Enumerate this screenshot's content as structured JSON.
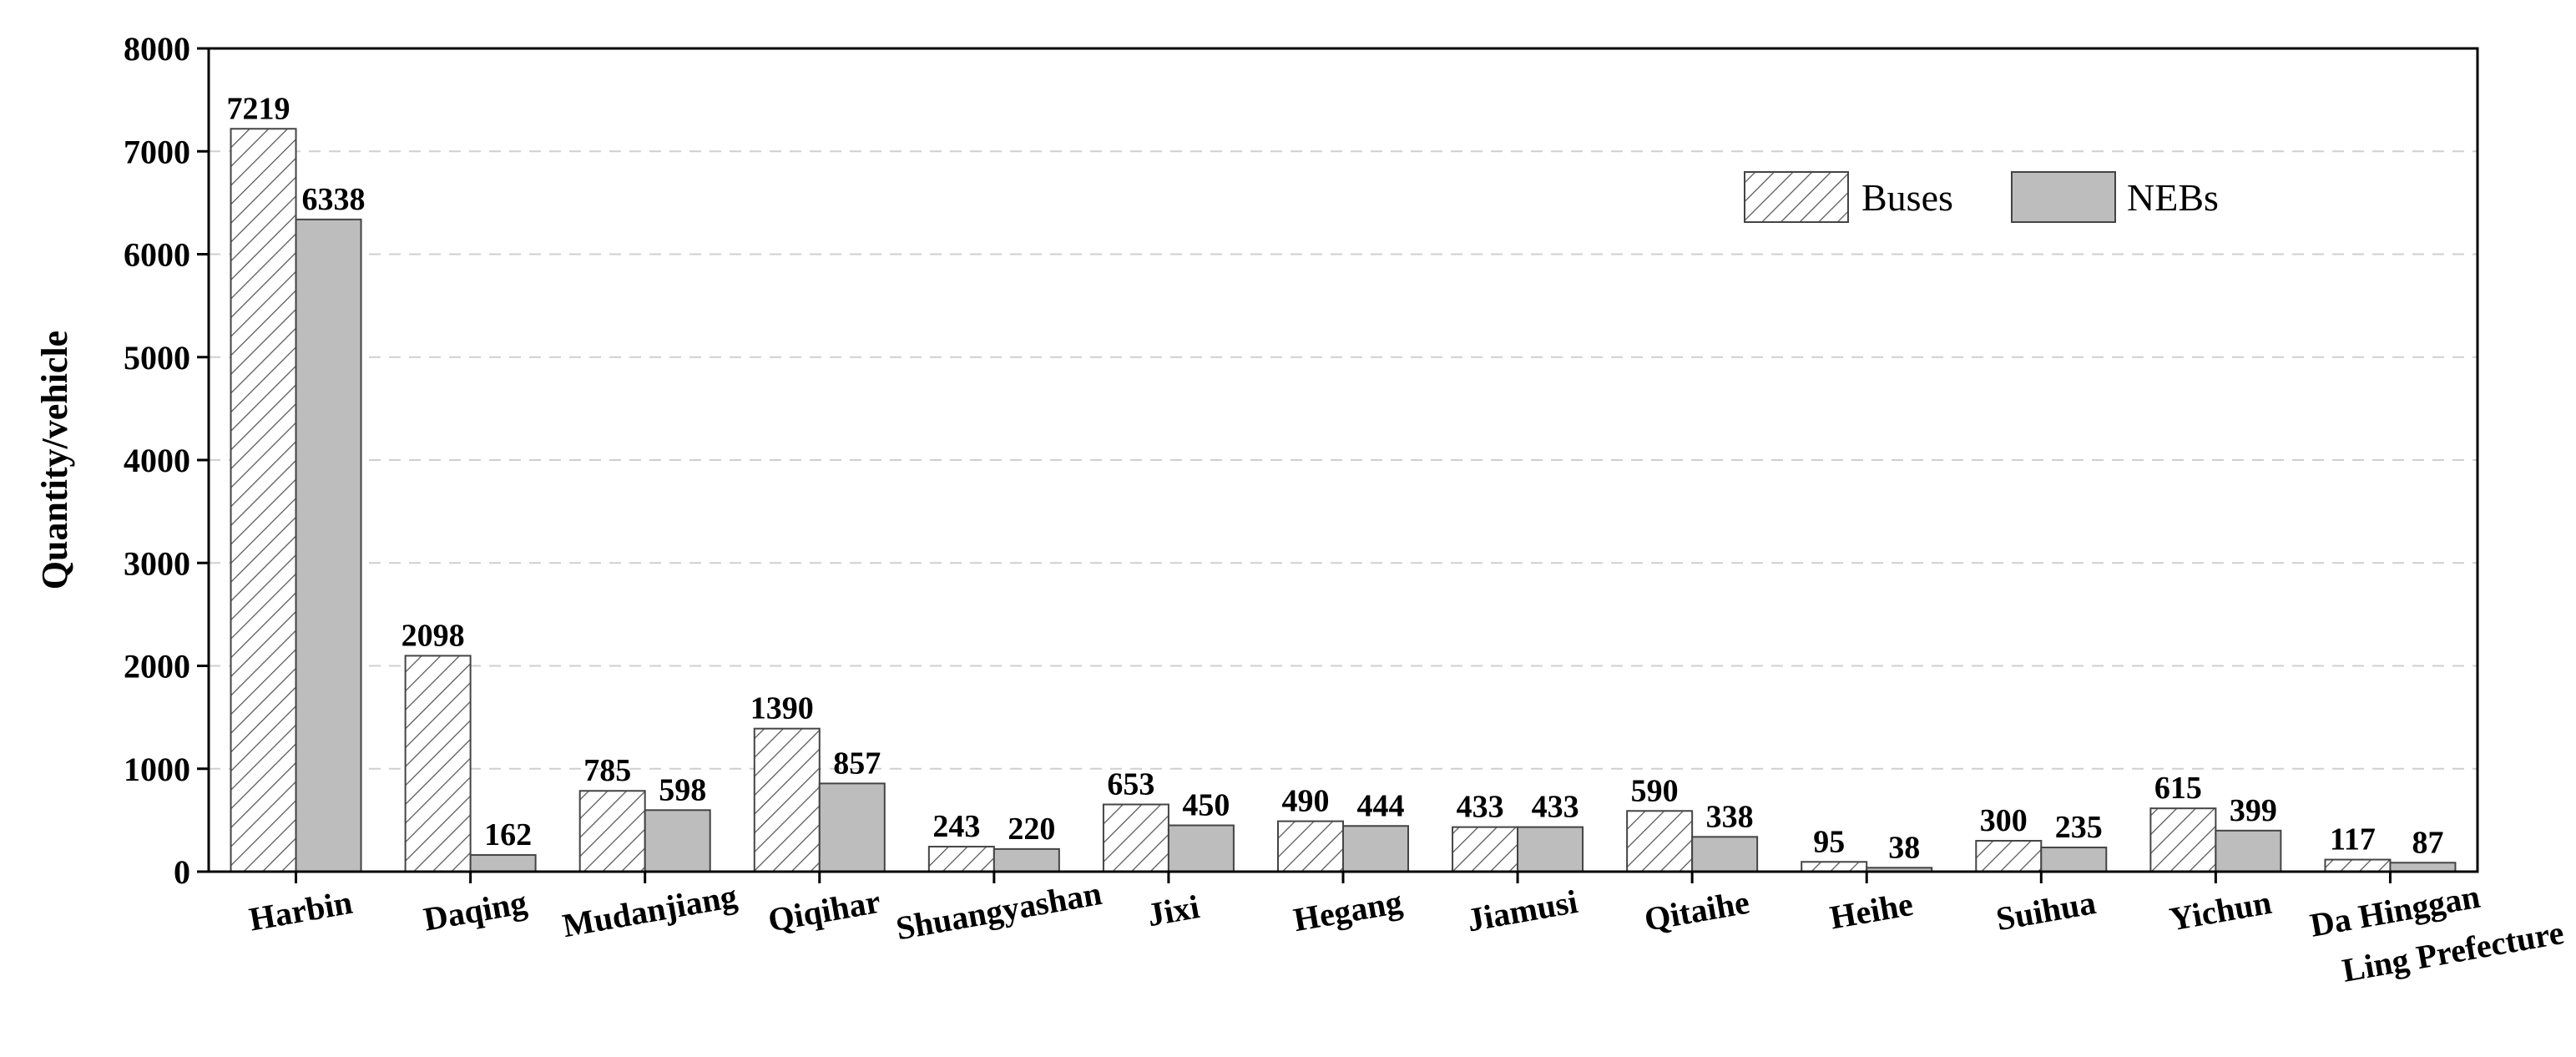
{
  "chart_data": {
    "type": "bar",
    "categories": [
      "Harbin",
      "Daqing",
      "Mudanjiang",
      "Qiqihar",
      "Shuangyashan",
      "Jixi",
      "Hegang",
      "Jiamusi",
      "Qitaihe",
      "Heihe",
      "Suihua",
      "Yichun",
      "Da Hinggan|Ling Prefecture"
    ],
    "series": [
      {
        "name": "Buses",
        "values": [
          7219,
          2098,
          785,
          1390,
          243,
          653,
          490,
          433,
          590,
          95,
          300,
          615,
          117
        ],
        "pattern": "hatch",
        "color": "#ffffff"
      },
      {
        "name": "NEBs",
        "values": [
          6338,
          162,
          598,
          857,
          220,
          450,
          444,
          433,
          338,
          38,
          235,
          399,
          87
        ],
        "pattern": "solid",
        "color": "#bdbdbd"
      }
    ],
    "ylabel": "Quantity/vehicle",
    "xlabel": "",
    "ylim": [
      0,
      8000
    ],
    "yticks": [
      0,
      1000,
      2000,
      3000,
      4000,
      5000,
      6000,
      7000,
      8000
    ],
    "grid": true,
    "legend_position": "top-right"
  }
}
